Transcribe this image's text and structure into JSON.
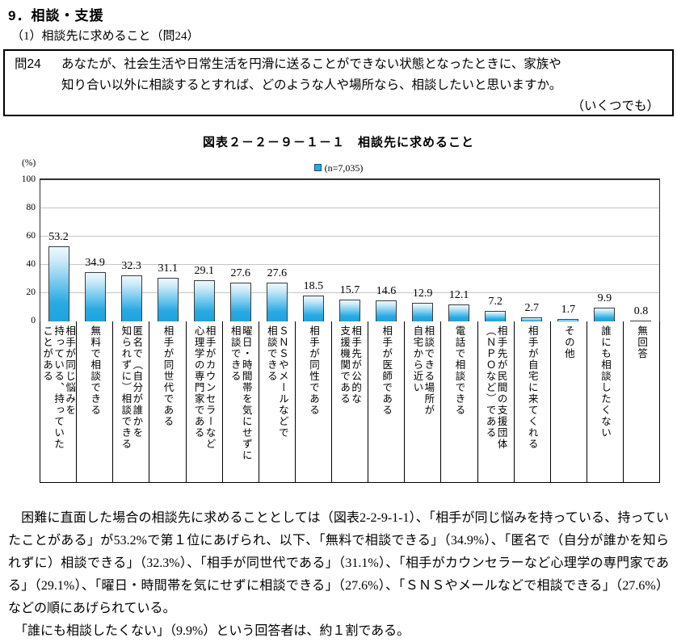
{
  "page": {
    "heading": "9．相談・支援",
    "subheading": "（1）相談先に求めること（問24）",
    "question": {
      "label": "問24",
      "line1": "あなたが、社会生活や日常生活を円滑に送ることができない状態となったときに、家族や",
      "line2": "知り合い以外に相談するとすれば、どのような人や場所なら、相談したいと思いますか。",
      "note": "（いくつでも）"
    },
    "paragraphs": [
      "　困難に直面した場合の相談先に求めることとしては（図表2-2-9-1-1）、「相手が同じ悩みを持っている、持っていたことがある」が53.2%で第１位にあげられ、以下、「無料で相談できる」（34.9%）、「匿名で（自分が誰かを知られずに）相談できる」（32.3%）、「相手が同世代である」（31.1%）、「相手がカウンセラーなど心理学の専門家である」（29.1%）、「曜日・時間帯を気にせずに相談できる」（27.6%）、「ＳＮＳやメールなどで相談できる」（27.6%）などの順にあげられている。",
      "　「誰にも相談したくない」（9.9%）という回答者は、約１割である。"
    ]
  },
  "chart": {
    "title": "図表２－２－９－１－１　相談先に求めること",
    "legend_label": "(n=7,035)",
    "unit_label": "(%)",
    "y_ticks": [
      0,
      20,
      40,
      60,
      80,
      100
    ],
    "bar_color": "#29a9e0",
    "gridline_color": "#c6c6c6"
  },
  "chart_data": {
    "type": "bar",
    "title": "図表２－２－９－１－１　相談先に求めること",
    "legend": [
      "(n=7,035)"
    ],
    "ylabel": "(%)",
    "ylim": [
      0,
      100
    ],
    "grid": true,
    "legend_position": "top-center",
    "categories": [
      "相手が同じ悩みを持っている、持っていたことがある",
      "無料で相談できる",
      "匿名で（自分が誰かを知られずに）相談できる",
      "相手が同世代である",
      "相手がカウンセラーなど心理学の専門家である",
      "曜日・時間帯を気にせずに相談できる",
      "ＳＮＳやメールなどで相談できる",
      "相手が同性である",
      "相手先が公的な支援機関である",
      "相手が医師である",
      "相談できる場所が自宅から近い",
      "電話で相談できる",
      "相手先が民間の支援団体（ＮＰＯなど）である",
      "相手が自宅に来てくれる",
      "その他",
      "誰にも相談したくない",
      "無回答"
    ],
    "values": [
      53.2,
      34.9,
      32.3,
      31.1,
      29.1,
      27.6,
      27.6,
      18.5,
      15.7,
      14.6,
      12.9,
      12.1,
      7.2,
      2.7,
      1.7,
      9.9,
      0.8
    ],
    "category_lines": [
      [
        "相手が同じ悩みを",
        "持っている、持っていた",
        "ことがある"
      ],
      [
        "無料で相談できる"
      ],
      [
        "匿名で（自分が誰かを",
        "知られずに）相談できる"
      ],
      [
        "相手が同世代である"
      ],
      [
        "相手がカウンセラーなど",
        "心理学の専門家である"
      ],
      [
        "曜日・時間帯を気にせずに",
        "相談できる"
      ],
      [
        "ＳＮＳやメールなどで",
        "相談できる"
      ],
      [
        "相手が同性である"
      ],
      [
        "相手先が公的な",
        "支援機関である"
      ],
      [
        "相手が医師である"
      ],
      [
        "相談できる場所が",
        "自宅から近い"
      ],
      [
        "電話で相談できる"
      ],
      [
        "相手先が民間の支援団体",
        "（ＮＰＯなど）である"
      ],
      [
        "相手が自宅に来てくれる"
      ],
      [
        "その他"
      ],
      [
        "誰にも相談したくない"
      ],
      [
        "無回答"
      ]
    ]
  }
}
